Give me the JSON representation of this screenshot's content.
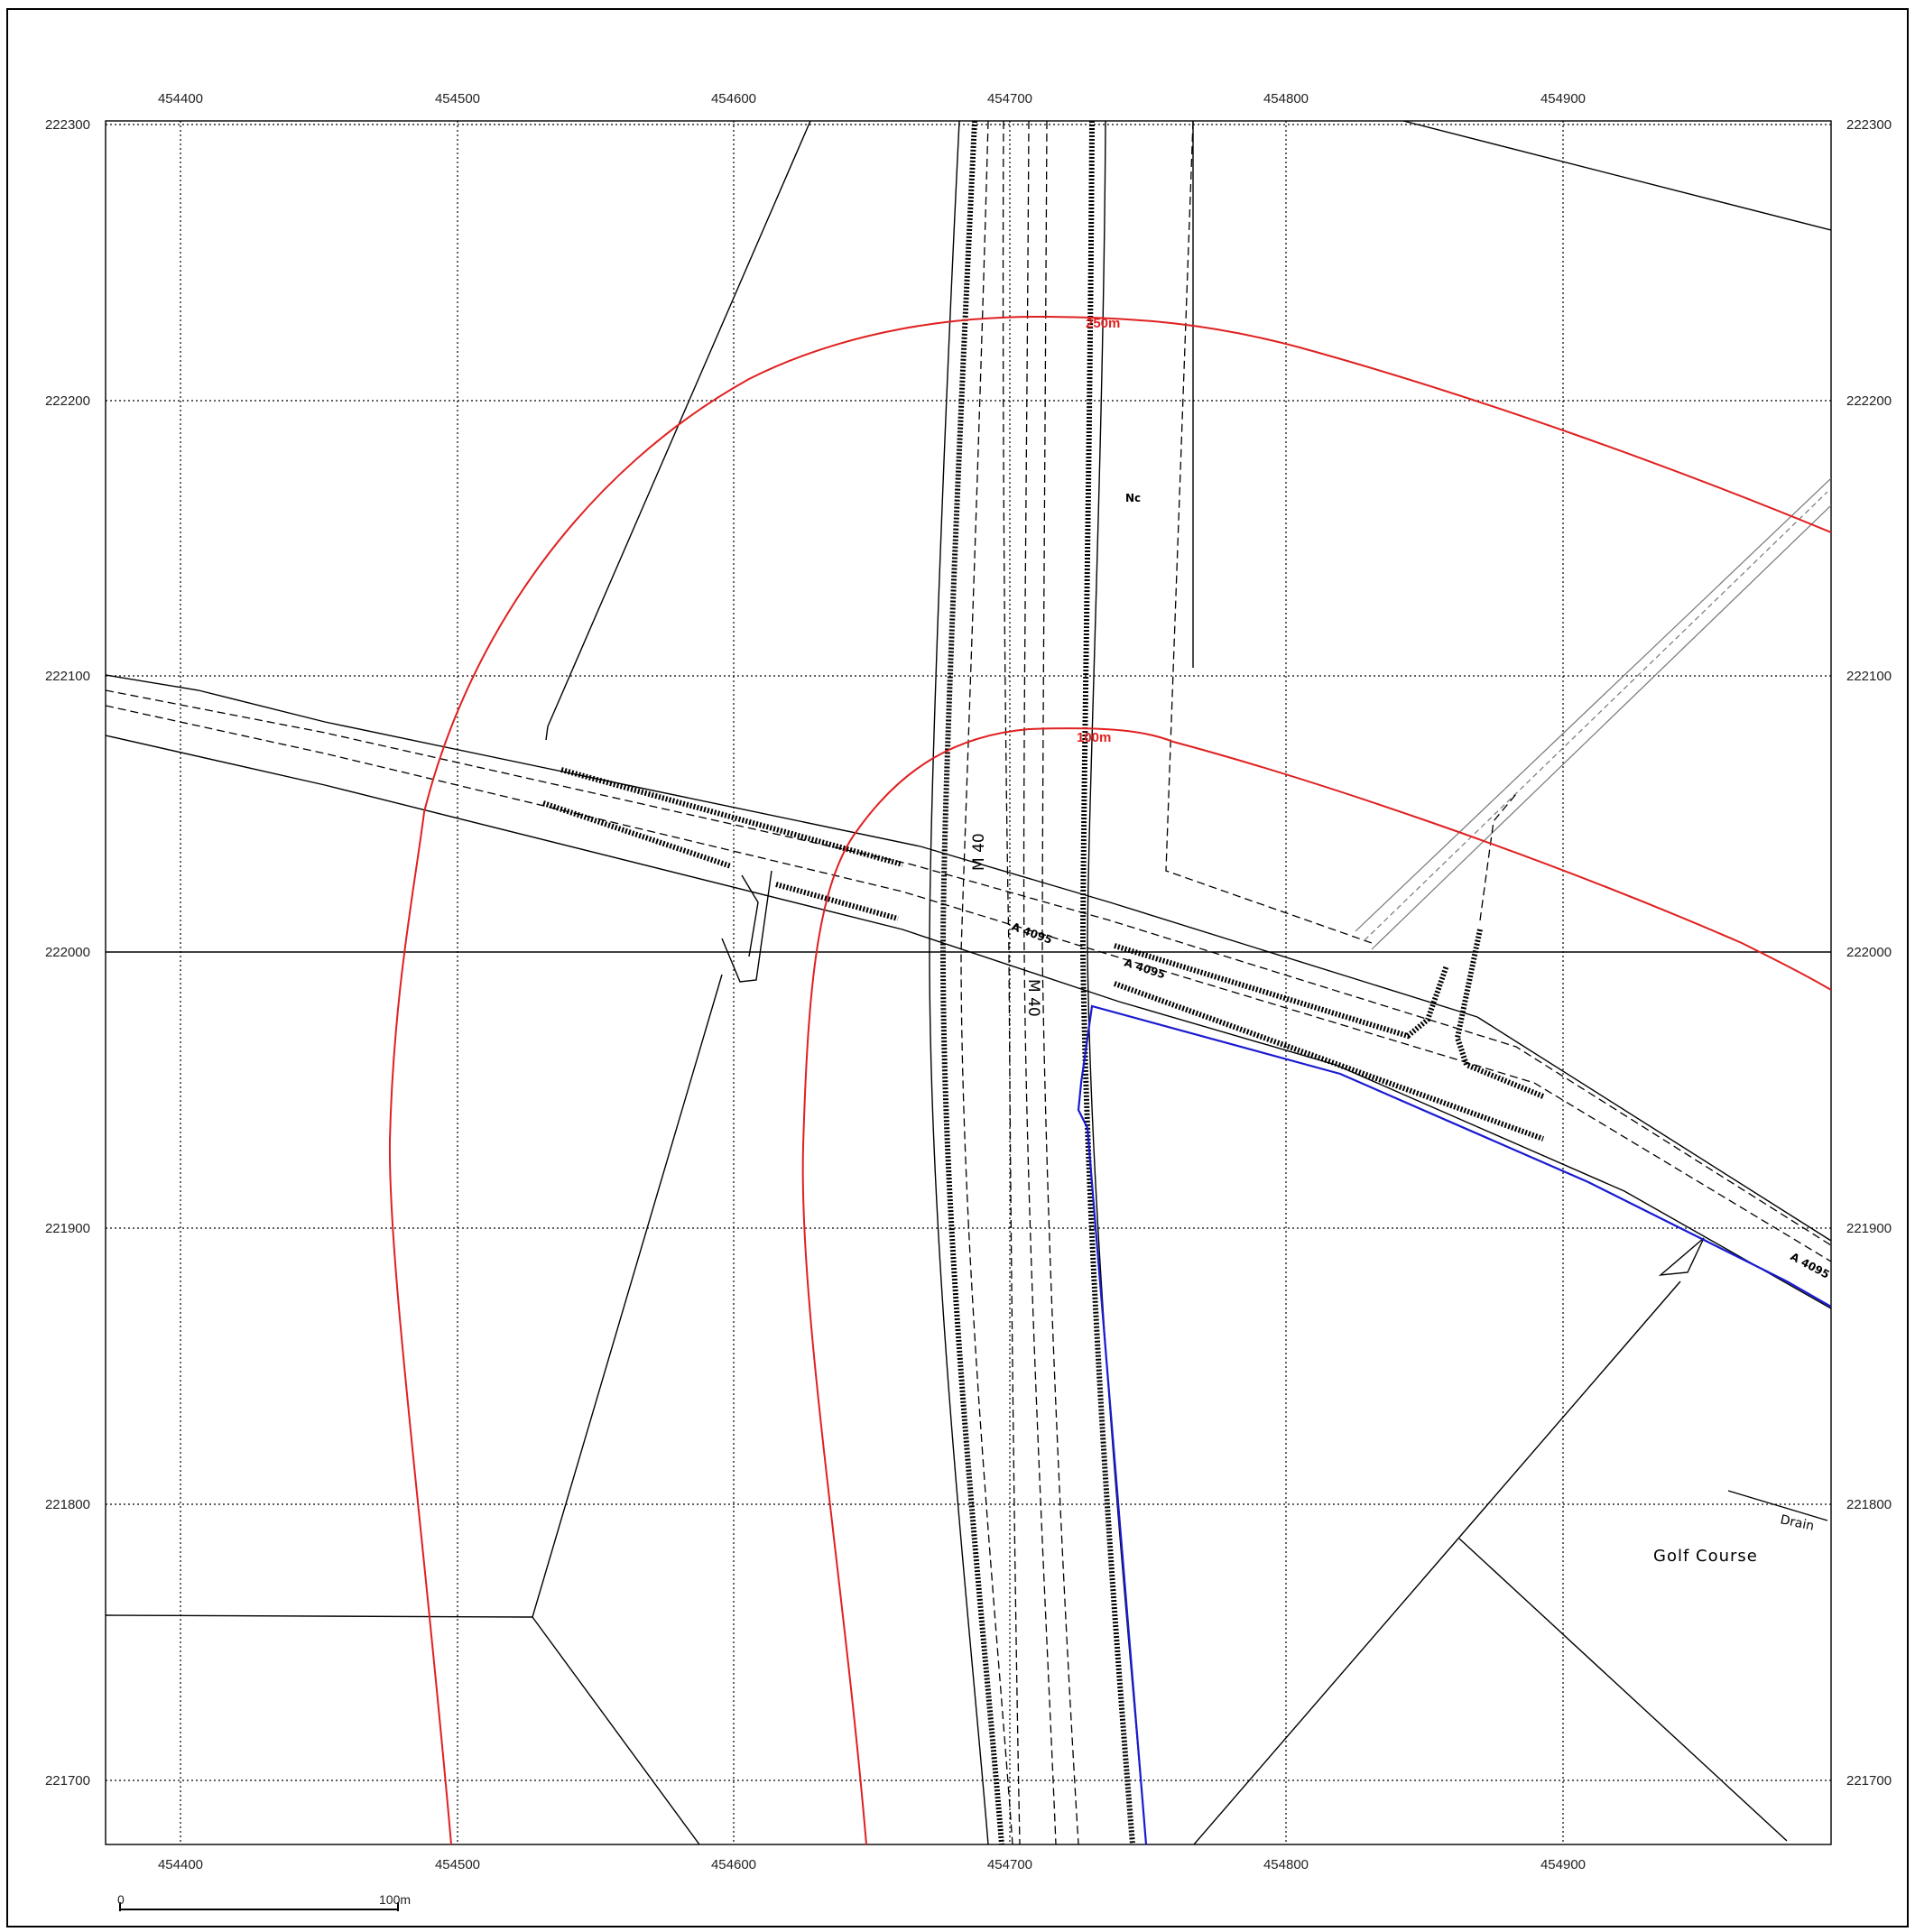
{
  "map": {
    "x_ticks": [
      "454400",
      "454500",
      "454600",
      "454700",
      "454800",
      "454900"
    ],
    "y_ticks": [
      "222300",
      "222200",
      "222100",
      "222000",
      "221900",
      "221800",
      "221700"
    ],
    "labels": {
      "m40_north": "M 40",
      "m40_south": "M 40",
      "a4095_west": "A 4095",
      "a4095_center": "A 4095",
      "a4095_east": "A 4095",
      "nc": "Nc",
      "golf_course": "Golf Course",
      "drain": "Drain",
      "buffer_outer": "250m",
      "buffer_inner": "100m"
    },
    "scale_bar": {
      "start_label": "0",
      "end_label": "100m"
    },
    "colors": {
      "buffer": "#e02020",
      "boundary": "#1a1ad0",
      "linework": "#000000"
    }
  }
}
